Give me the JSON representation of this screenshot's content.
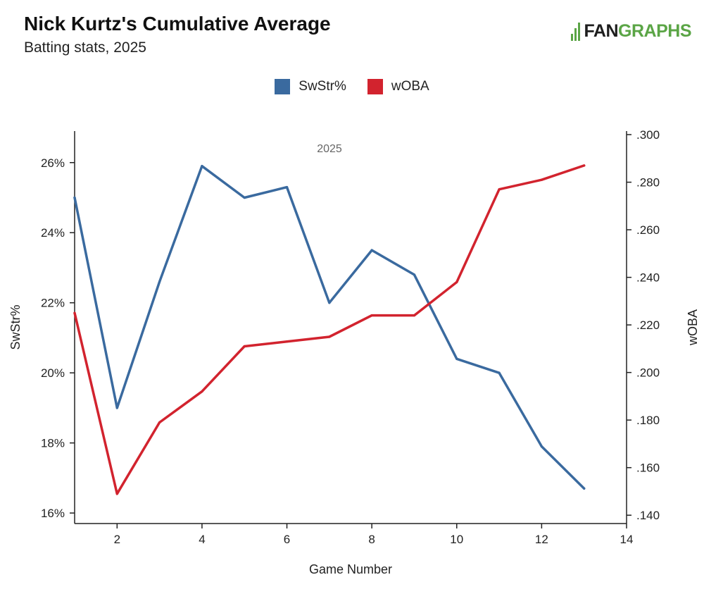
{
  "header": {
    "title": "Nick Kurtz's Cumulative Average",
    "subtitle": "Batting stats, 2025",
    "logo_fan": "FAN",
    "logo_graphs": "GRAPHS"
  },
  "colors": {
    "swstr": "#3a6a9f",
    "woba": "#d2232e",
    "axis": "#222222",
    "logo_green": "#5ba546"
  },
  "chart_data": {
    "type": "line",
    "title": "Nick Kurtz's Cumulative Average",
    "subtitle": "Batting stats, 2025",
    "annotation": "2025",
    "xlabel": "Game Number",
    "ylabel_left": "SwStr%",
    "ylabel_right": "wOBA",
    "xlim": [
      1,
      14
    ],
    "x_ticks": [
      2,
      4,
      6,
      8,
      10,
      12,
      14
    ],
    "x_tick_labels": [
      "2",
      "4",
      "6",
      "8",
      "10",
      "12",
      "14"
    ],
    "ylim_left": [
      15.7,
      26.9
    ],
    "y_left_ticks": [
      16,
      18,
      20,
      22,
      24,
      26
    ],
    "y_left_tick_labels": [
      "16%",
      "18%",
      "20%",
      "22%",
      "24%",
      "26%"
    ],
    "ylim_right": [
      0.1365,
      0.3015
    ],
    "y_right_ticks": [
      0.14,
      0.16,
      0.18,
      0.2,
      0.22,
      0.24,
      0.26,
      0.28,
      0.3
    ],
    "y_right_tick_labels": [
      ".140",
      ".160",
      ".180",
      ".200",
      ".220",
      ".240",
      ".260",
      ".280",
      ".300"
    ],
    "legend": [
      "SwStr%",
      "wOBA"
    ],
    "legend_position": "top-center",
    "grid": false,
    "series": [
      {
        "name": "SwStr%",
        "axis": "left",
        "x": [
          1,
          2,
          3,
          4,
          5,
          6,
          7,
          8,
          9,
          10,
          11,
          12,
          13
        ],
        "values": [
          25.0,
          19.0,
          22.6,
          25.9,
          25.0,
          25.3,
          22.0,
          23.5,
          22.8,
          20.4,
          20.0,
          17.9,
          16.7
        ]
      },
      {
        "name": "wOBA",
        "axis": "right",
        "x": [
          1,
          2,
          3,
          4,
          5,
          6,
          7,
          8,
          9,
          10,
          11,
          12,
          13
        ],
        "values": [
          0.225,
          0.149,
          0.179,
          0.192,
          0.211,
          0.213,
          0.215,
          0.224,
          0.224,
          0.238,
          0.277,
          0.281,
          0.287
        ]
      }
    ]
  }
}
